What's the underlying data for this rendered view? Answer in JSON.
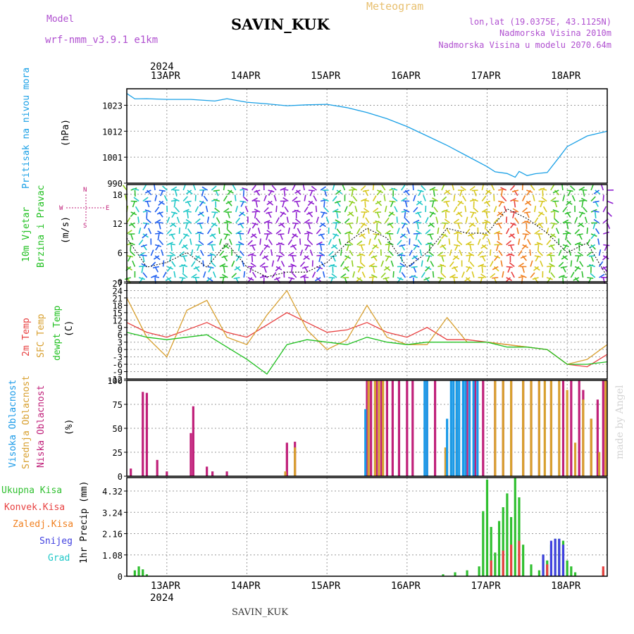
{
  "header": {
    "model_label": "Model",
    "model_name": "wrf-nmm_v3.9.1 e1km",
    "station": "SAVIN_KUK",
    "meteogram": "Meteogram",
    "lonlat": "lon,lat (19.0375E, 43.1125N)",
    "altitude": "Nadmorska Visina 2010m",
    "model_altitude": "Nadmorska Visina u modelu 2070.64m",
    "footer_station": "SAVIN_KUK",
    "watermark": "made by Angel"
  },
  "colors": {
    "model_label": "#b050d0",
    "meteogram": "#e8c070",
    "title": "#000000",
    "pressure": "#1aa0e6",
    "temp2m": "#e84040",
    "sfc": "#d8a030",
    "dewpt": "#20c020",
    "low_cloud": "#c0207a",
    "mid_cloud": "#d8a030",
    "high_cloud": "#1a9ae8",
    "rain_total": "#30c030",
    "rain_conv": "#e84040",
    "rain_grid": "#f08020",
    "snow": "#4040e0",
    "graupel": "#20c8c8",
    "wind_purple": "#9020d0"
  },
  "chart_data": [
    {
      "type": "line",
      "panel": "pressure",
      "ylabel_left": "Pritisak na nivou mora",
      "ylabel_right": "(hPa)",
      "yticks": [
        "1023",
        "1012",
        "1001",
        "990"
      ],
      "ylim": [
        990,
        1030
      ],
      "x_unit": "days",
      "x_top_labels": [
        "13APR",
        "14APR",
        "15APR",
        "16APR",
        "17APR",
        "18APR"
      ],
      "x_top_year": "2024",
      "series": [
        {
          "color_key": "pressure",
          "x": [
            12.5,
            12.6,
            12.75,
            13.0,
            13.3,
            13.6,
            13.75,
            14.0,
            14.25,
            14.5,
            14.75,
            15.0,
            15.25,
            15.5,
            15.75,
            16.0,
            16.25,
            16.5,
            16.75,
            17.0,
            17.1,
            17.25,
            17.35,
            17.4,
            17.5,
            17.6,
            17.75,
            17.9,
            18.0,
            18.25,
            18.5
          ],
          "y": [
            1028.0,
            1025.7,
            1025.8,
            1025.5,
            1025.5,
            1024.8,
            1025.8,
            1024.3,
            1023.6,
            1022.8,
            1023.2,
            1023.4,
            1022.0,
            1019.9,
            1017.3,
            1014.0,
            1010.0,
            1006.0,
            1001.5,
            997.0,
            994.8,
            994.1,
            992.5,
            995.0,
            993.2,
            994.0,
            994.5,
            1001.0,
            1005.5,
            1010.0,
            1012.0
          ]
        }
      ]
    },
    {
      "type": "scatter",
      "panel": "wind",
      "ylabel_left": "10m Vjetar Brzina i Pravac",
      "ylabel_right": "(m/s)",
      "compass": {
        "n": "N",
        "s": "S",
        "e": "E",
        "w": "W"
      },
      "yticks": [
        "18",
        "12",
        "6",
        "0"
      ],
      "ylim": [
        0,
        20
      ],
      "series": [
        {
          "name": "speed",
          "x": [
            12.5,
            12.75,
            13.0,
            13.25,
            13.5,
            13.75,
            14.0,
            14.25,
            14.5,
            14.75,
            15.0,
            15.25,
            15.5,
            15.75,
            16.0,
            16.25,
            16.5,
            16.75,
            17.0,
            17.25,
            17.5,
            17.75,
            18.0,
            18.25,
            18.5
          ],
          "y": [
            9.0,
            3.0,
            4.0,
            6.0,
            3.0,
            8.0,
            3.0,
            1.0,
            2.0,
            2.0,
            4.0,
            8.0,
            11.0,
            9.0,
            3.0,
            6.0,
            11.0,
            10.0,
            10.0,
            15.0,
            13.0,
            10.0,
            6.0,
            8.0,
            1.0
          ]
        }
      ]
    },
    {
      "type": "line",
      "panel": "temperature",
      "ylabel_left": [
        "2m Temp",
        "SFC Temp",
        "dewpt Temp"
      ],
      "ylabel_right": "(C)",
      "yticks": [
        "27",
        "24",
        "21",
        "18",
        "15",
        "12",
        "9",
        "6",
        "3",
        "0",
        "-3",
        "-6",
        "-9",
        "-12"
      ],
      "ylim": [
        -12,
        27
      ],
      "series": [
        {
          "name": "2m Temp",
          "color_key": "temp2m",
          "x": [
            12.5,
            12.75,
            13.0,
            13.25,
            13.5,
            13.75,
            14.0,
            14.25,
            14.5,
            14.75,
            15.0,
            15.25,
            15.5,
            15.75,
            16.0,
            16.25,
            16.5,
            16.75,
            17.0,
            17.25,
            17.5,
            17.75,
            18.0,
            18.25,
            18.5
          ],
          "y": [
            11.0,
            7.0,
            5.0,
            8.0,
            11.0,
            7.0,
            5.0,
            10.0,
            15.0,
            11.0,
            7.0,
            8.0,
            11.0,
            7.0,
            5.0,
            9.0,
            4.0,
            4.0,
            3.0,
            2.0,
            1.0,
            0.0,
            -6.0,
            -7.0,
            -2.0
          ]
        },
        {
          "name": "SFC Temp",
          "color_key": "sfc",
          "x": [
            12.5,
            12.75,
            13.0,
            13.25,
            13.5,
            13.75,
            14.0,
            14.25,
            14.5,
            14.75,
            15.0,
            15.25,
            15.5,
            15.75,
            16.0,
            16.25,
            16.5,
            16.75,
            17.0,
            17.25,
            17.5,
            17.75,
            18.0,
            18.25,
            18.5
          ],
          "y": [
            21.0,
            5.0,
            -3.0,
            16.0,
            20.0,
            5.0,
            2.0,
            14.0,
            24.0,
            8.0,
            0.0,
            4.0,
            18.0,
            5.0,
            2.0,
            2.0,
            13.0,
            3.0,
            3.0,
            2.0,
            1.0,
            0.0,
            -6.0,
            -4.0,
            2.0
          ]
        },
        {
          "name": "dewpt Temp",
          "color_key": "dewpt",
          "x": [
            12.5,
            12.75,
            13.0,
            13.25,
            13.5,
            13.75,
            14.0,
            14.25,
            14.5,
            14.75,
            15.0,
            15.25,
            15.5,
            15.75,
            16.0,
            16.25,
            16.5,
            16.75,
            17.0,
            17.25,
            17.5,
            17.75,
            18.0,
            18.25,
            18.5
          ],
          "y": [
            7.0,
            5.0,
            4.0,
            5.0,
            6.0,
            1.0,
            -4.0,
            -10.0,
            2.0,
            4.0,
            3.0,
            2.0,
            5.0,
            3.0,
            2.0,
            3.0,
            3.0,
            3.0,
            3.0,
            1.0,
            1.0,
            0.0,
            -6.0,
            -6.0,
            -5.0
          ]
        }
      ]
    },
    {
      "type": "bar",
      "panel": "clouds",
      "ylabel_left": [
        "Visoka Oblacnost",
        "Srednja Oblacnost",
        "Niska Oblacnost"
      ],
      "ylabel_right": "(%)",
      "yticks": [
        "100",
        "75",
        "50",
        "25",
        "0"
      ],
      "ylim": [
        0,
        100
      ],
      "series": [
        {
          "name": "Niska Oblacnost",
          "color_key": "low_cloud",
          "x": [
            12.55,
            12.7,
            12.75,
            12.88,
            13.0,
            13.3,
            13.33,
            13.5,
            13.57,
            13.75,
            14.5,
            14.6,
            15.5,
            15.55,
            15.62,
            15.68,
            15.75,
            15.82,
            15.9,
            16.0,
            16.07,
            16.25,
            16.35,
            16.62,
            16.75,
            16.85,
            16.95,
            17.1,
            17.2,
            17.3,
            17.45,
            17.55,
            17.65,
            17.8,
            17.95,
            18.05,
            18.15,
            18.2,
            18.3,
            18.38,
            18.45
          ],
          "y": [
            8,
            88,
            87,
            17,
            5,
            45,
            73,
            10,
            5,
            5,
            35,
            36,
            100,
            100,
            100,
            100,
            100,
            100,
            100,
            100,
            100,
            100,
            100,
            60,
            100,
            100,
            100,
            100,
            100,
            100,
            100,
            100,
            100,
            100,
            100,
            100,
            100,
            90,
            60,
            80,
            100
          ]
        },
        {
          "name": "Srednja Oblacnost",
          "color_key": "mid_cloud",
          "x": [
            14.48,
            14.6,
            15.52,
            15.6,
            15.65,
            15.7,
            16.48,
            16.55,
            16.62,
            17.1,
            17.2,
            17.3,
            17.45,
            17.55,
            17.65,
            17.72,
            17.8,
            17.9,
            18.0,
            18.1,
            18.2,
            18.3,
            18.4,
            18.48
          ],
          "y": [
            5,
            30,
            100,
            100,
            100,
            100,
            30,
            45,
            100,
            100,
            100,
            100,
            100,
            100,
            100,
            100,
            100,
            100,
            90,
            35,
            80,
            60,
            25,
            100
          ]
        },
        {
          "name": "Visoka Oblacnost",
          "color_key": "high_cloud",
          "x": [
            15.48,
            16.22,
            16.25,
            16.5,
            16.55,
            16.58,
            16.62,
            16.65,
            16.7,
            16.73,
            16.78,
            16.83,
            16.88
          ],
          "y": [
            70,
            100,
            100,
            60,
            100,
            100,
            100,
            100,
            100,
            100,
            100,
            100,
            100
          ]
        }
      ]
    },
    {
      "type": "bar",
      "panel": "precip",
      "ylabel_left": [
        "Ukupna Kisa",
        "Konvek.Kisa",
        "Zaledj.Kisa",
        "Snijeg",
        "Grad"
      ],
      "ylabel_right": "1hr Precip (mm)",
      "yticks": [
        "4.32",
        "3.24",
        "2.16",
        "1.08",
        "0"
      ],
      "ylim": [
        0,
        5.0
      ],
      "x_bottom_labels": [
        "13APR",
        "14APR",
        "15APR",
        "16APR",
        "17APR",
        "18APR"
      ],
      "x_bottom_year": "2024",
      "series": [
        {
          "name": "Ukupna Kisa",
          "color_key": "rain_total",
          "x": [
            12.6,
            12.65,
            12.7,
            12.75,
            16.45,
            16.6,
            16.75,
            16.9,
            16.95,
            17.0,
            17.05,
            17.1,
            17.15,
            17.2,
            17.25,
            17.3,
            17.35,
            17.4,
            17.45,
            17.55,
            17.65,
            17.7,
            17.75,
            17.8,
            17.85,
            17.9,
            17.95,
            18.0,
            18.05,
            18.1,
            18.45
          ],
          "y": [
            0.3,
            0.5,
            0.35,
            0.1,
            0.1,
            0.2,
            0.3,
            0.5,
            3.3,
            4.9,
            2.5,
            1.2,
            2.8,
            3.5,
            4.2,
            3.0,
            5.0,
            4.0,
            1.6,
            0.6,
            0.3,
            1.1,
            0.8,
            1.6,
            1.9,
            1.9,
            1.8,
            0.8,
            0.5,
            0.2,
            0.3
          ]
        },
        {
          "name": "Konvek.Kisa",
          "color_key": "rain_conv",
          "x": [
            17.05,
            17.2,
            17.3,
            17.4,
            17.75,
            18.45
          ],
          "y": [
            0.8,
            1.3,
            1.6,
            1.8,
            0.6,
            0.5
          ]
        },
        {
          "name": "Snijeg",
          "color_key": "snow",
          "x": [
            17.7,
            17.8,
            17.85,
            17.9,
            17.95
          ],
          "y": [
            1.1,
            1.8,
            1.9,
            1.9,
            1.6
          ]
        }
      ]
    }
  ]
}
